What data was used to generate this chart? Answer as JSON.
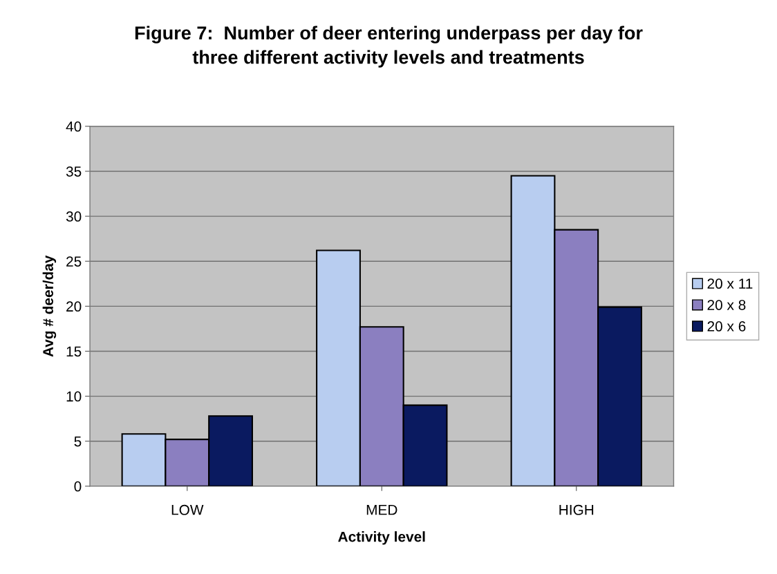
{
  "chart_data": {
    "type": "bar",
    "title": "Figure 7:  Number of deer entering underpass per day for\nthree different activity levels and treatments",
    "xlabel": "Activity level",
    "ylabel": "Avg # deer/day",
    "categories": [
      "LOW",
      "MED",
      "HIGH"
    ],
    "series": [
      {
        "name": "20 x 11",
        "color": "#b8cdf0",
        "values": [
          5.8,
          26.2,
          34.5
        ]
      },
      {
        "name": "20 x 8",
        "color": "#8b7fc0",
        "values": [
          5.2,
          17.7,
          28.5
        ]
      },
      {
        "name": "20 x 6",
        "color": "#0a1a60",
        "values": [
          7.8,
          9.0,
          19.9
        ]
      }
    ],
    "ylim": [
      0,
      40
    ],
    "yticks": [
      0,
      5,
      10,
      15,
      20,
      25,
      30,
      35,
      40
    ],
    "grid": "y",
    "legend": "right"
  }
}
